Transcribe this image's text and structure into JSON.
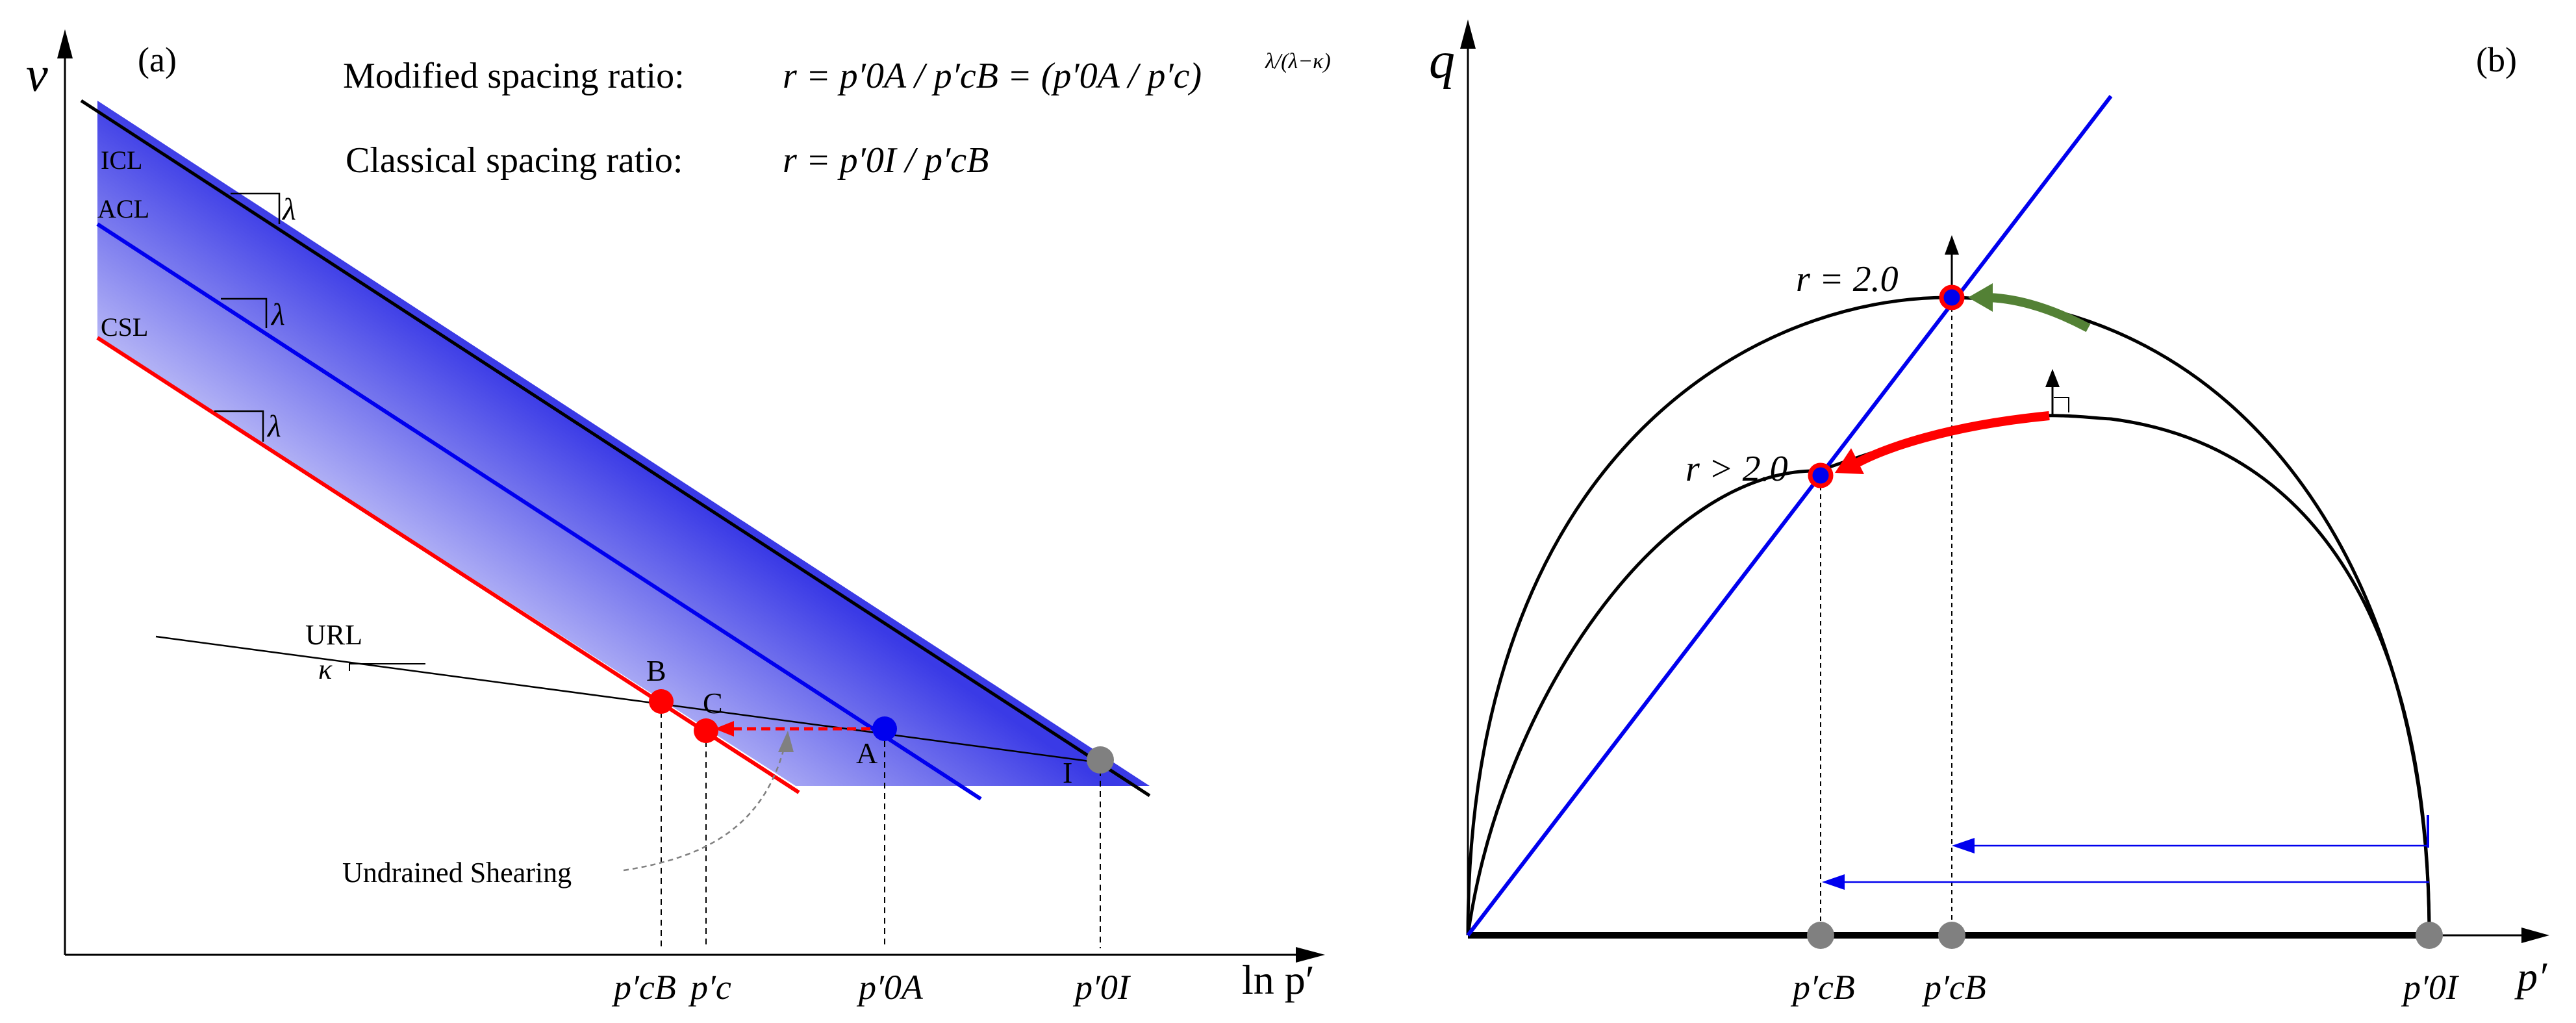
{
  "panel_a": {
    "label": "(a)",
    "v_axis": "v",
    "x_axis": "ln p′",
    "modified_label": "Modified spacing ratio:",
    "modified_formula": "r = p′0A / p′cB = (p′0A / p′c)",
    "modified_exponent": "λ/(λ−κ)",
    "classical_label": "Classical spacing ratio:",
    "classical_formula": "r = p′0I / p′cB",
    "line_icl": "ICL",
    "line_acl": "ACL",
    "line_csl": "CSL",
    "line_url": "URL",
    "slope_lambda": "λ",
    "slope_kappa": "κ",
    "pt_b": "B",
    "pt_c": "C",
    "pt_a": "A",
    "pt_i": "I",
    "undrained": "Undrained Shearing",
    "tick_pcb": "p′cB",
    "tick_pc": "p′c",
    "tick_p0a": "p′0A",
    "tick_p0i": "p′0I"
  },
  "panel_b": {
    "label": "(b)",
    "y_axis": "q",
    "x_axis": "p′",
    "r_equal": "r = 2.0",
    "r_greater": "r > 2.0",
    "tick_pcb_1": "p′cB",
    "tick_pcb_2": "p′cB",
    "tick_p0i": "p′0I"
  },
  "colors": {
    "blue": "#0000ee",
    "red": "#ff0000",
    "green": "#538135",
    "grey": "#808080",
    "fill": "#4040e8"
  }
}
